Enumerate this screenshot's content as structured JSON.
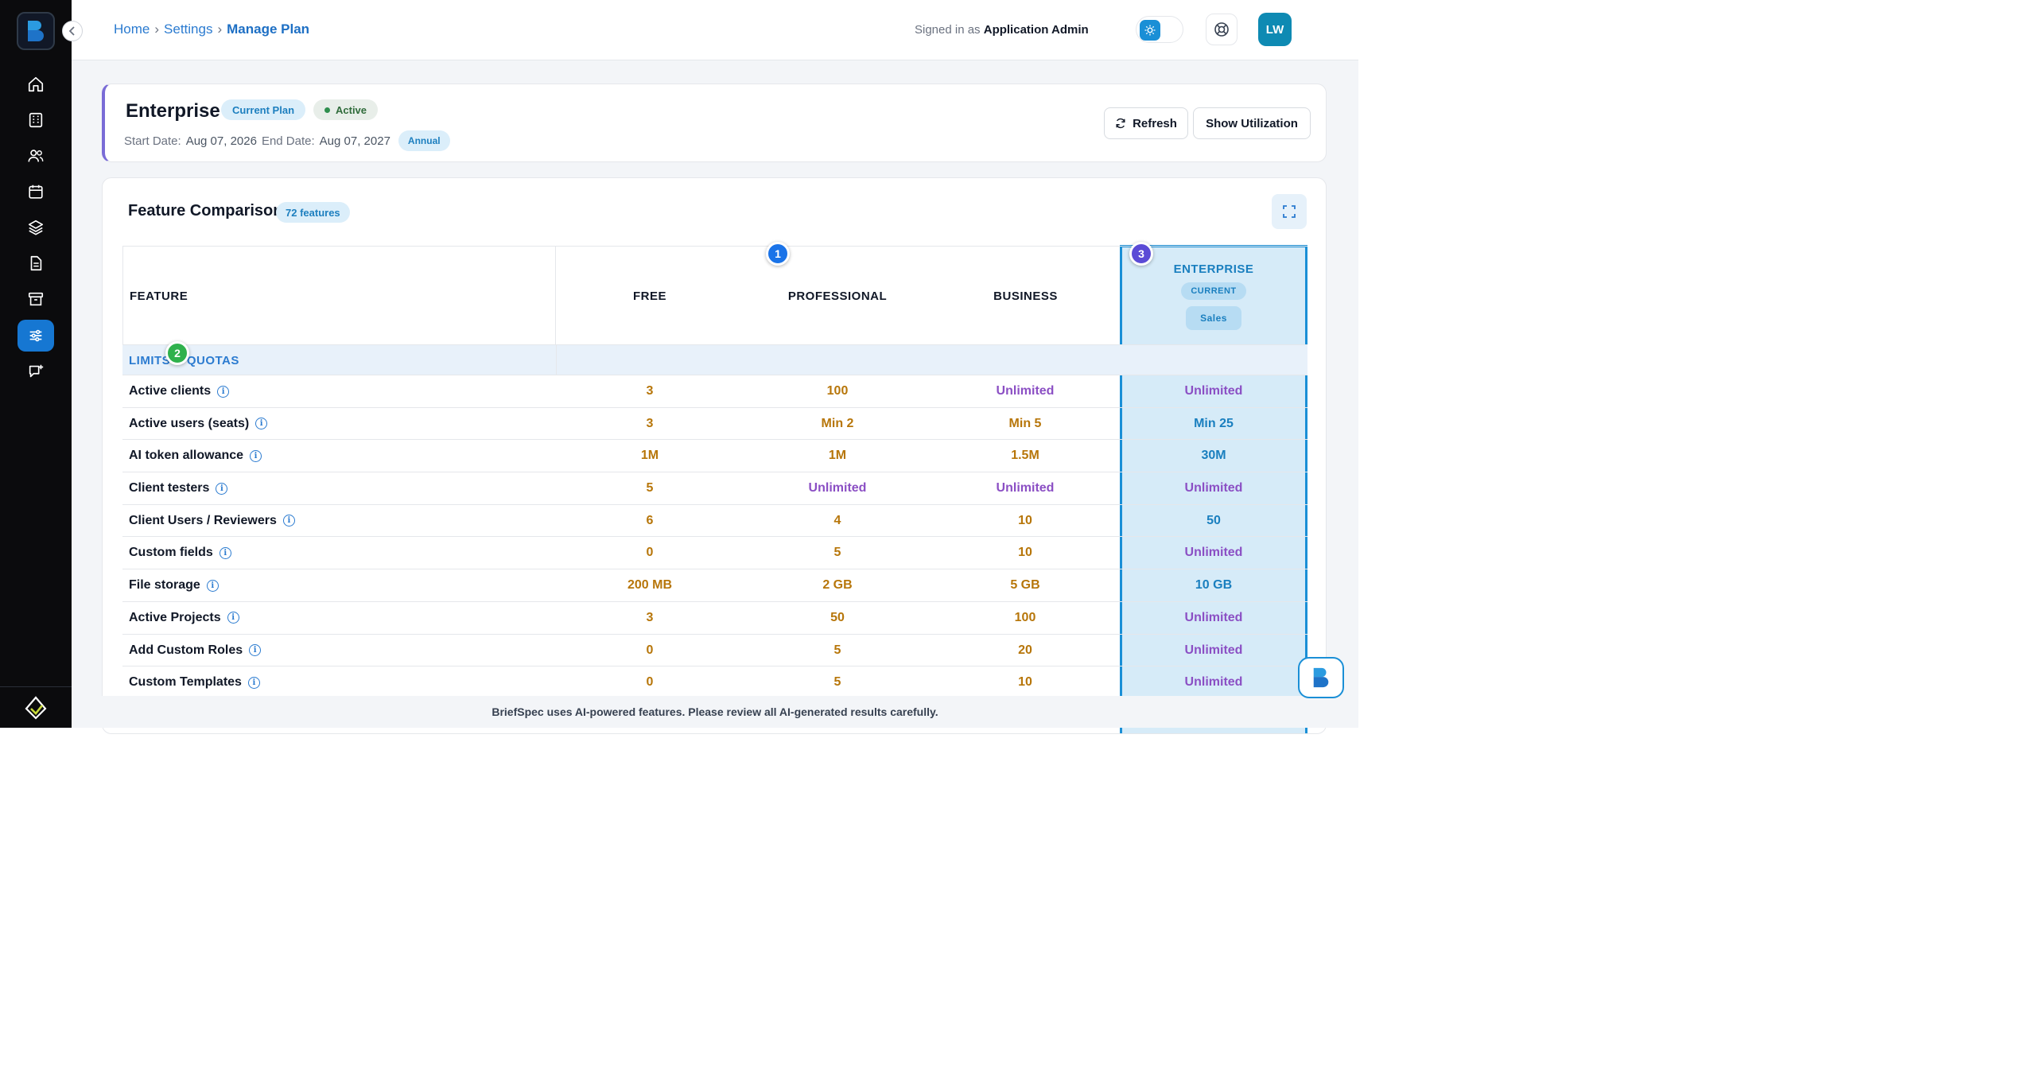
{
  "breadcrumb": {
    "home": "Home",
    "settings": "Settings",
    "current": "Manage Plan",
    "sep": "›"
  },
  "header": {
    "signed_prefix": "Signed in as",
    "signed_user": "Application Admin",
    "avatar_initials": "LW"
  },
  "sidebar": {
    "items": [
      {
        "icon": "home-icon"
      },
      {
        "icon": "building-icon"
      },
      {
        "icon": "users-icon"
      },
      {
        "icon": "calendar-icon"
      },
      {
        "icon": "layers-icon"
      },
      {
        "icon": "document-icon"
      },
      {
        "icon": "archive-icon"
      },
      {
        "icon": "sliders-icon",
        "active": true
      },
      {
        "icon": "feedback-icon"
      }
    ]
  },
  "plan": {
    "name": "Enterprise",
    "current_badge": "Current Plan",
    "status": "Active",
    "start_label": "Start Date:",
    "start_date": "Aug 07, 2026",
    "end_label": "End Date:",
    "end_date": "Aug 07, 2027",
    "billing": "Annual",
    "refresh_label": "Refresh",
    "utilization_label": "Show Utilization"
  },
  "features": {
    "title": "Feature Comparison",
    "count_label": "72 features",
    "columns": {
      "feature": "FEATURE",
      "free": "FREE",
      "professional": "PROFESSIONAL",
      "business": "BUSINESS",
      "enterprise": "ENTERPRISE",
      "enterprise_current": "CURRENT",
      "enterprise_cta": "Sales"
    },
    "group": "LIMITS & QUOTAS",
    "rows": [
      {
        "name": "Active clients",
        "free": "3",
        "pro": "100",
        "biz": "Unlimited",
        "ent": "Unlimited"
      },
      {
        "name": "Active users (seats)",
        "free": "3",
        "pro": "Min 2",
        "biz": "Min 5",
        "ent": "Min 25"
      },
      {
        "name": "AI token allowance",
        "free": "1M",
        "pro": "1M",
        "biz": "1.5M",
        "ent": "30M"
      },
      {
        "name": "Client testers",
        "free": "5",
        "pro": "Unlimited",
        "biz": "Unlimited",
        "ent": "Unlimited"
      },
      {
        "name": "Client Users / Reviewers",
        "free": "6",
        "pro": "4",
        "biz": "10",
        "ent": "50"
      },
      {
        "name": "Custom fields",
        "free": "0",
        "pro": "5",
        "biz": "10",
        "ent": "Unlimited"
      },
      {
        "name": "File storage",
        "free": "200 MB",
        "pro": "2 GB",
        "biz": "5 GB",
        "ent": "10 GB"
      },
      {
        "name": "Active Projects",
        "free": "3",
        "pro": "50",
        "biz": "100",
        "ent": "Unlimited"
      },
      {
        "name": "Add Custom Roles",
        "free": "0",
        "pro": "5",
        "biz": "20",
        "ent": "Unlimited"
      },
      {
        "name": "Custom Templates",
        "free": "0",
        "pro": "5",
        "biz": "10",
        "ent": "Unlimited"
      }
    ]
  },
  "markers": [
    "1",
    "2",
    "3"
  ],
  "footer": {
    "note": "BriefSpec uses AI-powered features. Please review all AI-generated results carefully."
  },
  "colors": {
    "accent": "#1a8fd6",
    "limit_value": "#b7760a",
    "unlimited": "#8b4fc4",
    "enterprise_value": "#1a7fbf"
  }
}
